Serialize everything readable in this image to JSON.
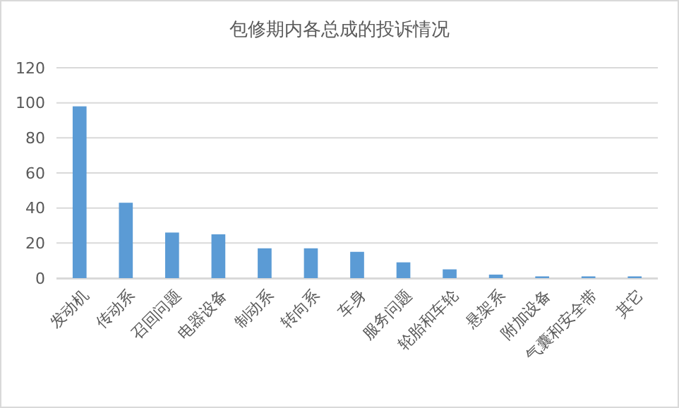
{
  "chart_data": {
    "type": "bar",
    "title": "包修期内各总成的投诉情况",
    "categories": [
      "发动机",
      "传动系",
      "召回问题",
      "电器设备",
      "制动系",
      "转向系",
      "车身",
      "服务问题",
      "轮胎和车轮",
      "悬架系",
      "附加设备",
      "气囊和安全带",
      "其它"
    ],
    "values": [
      98,
      43,
      26,
      25,
      17,
      17,
      15,
      9,
      5,
      2,
      1,
      1,
      1
    ],
    "color": "#5b9bd5",
    "ylim": [
      0,
      120
    ],
    "yticks": [
      0,
      20,
      40,
      60,
      80,
      100,
      120
    ],
    "grid": "y"
  }
}
